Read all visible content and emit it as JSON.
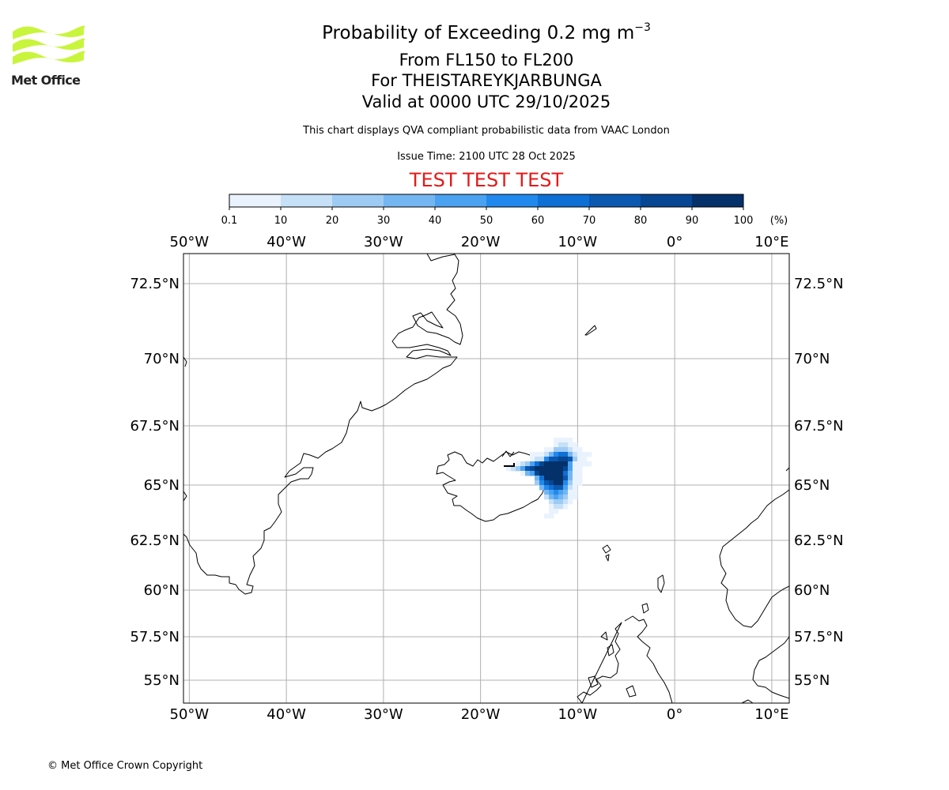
{
  "logo": {
    "text": "Met Office",
    "color": "#c8f53c"
  },
  "header": {
    "title_prefix": "Probability of Exceeding 0.2 mg m",
    "title_exponent": "−3",
    "flight_levels": "From FL150 to FL200",
    "volcano": "For THEISTAREYKJARBUNGA",
    "valid": "Valid at 0000 UTC 29/10/2025",
    "disclaimer": "This chart displays QVA compliant probabilistic data from VAAC London",
    "issue_time": "Issue Time: 2100 UTC 28 Oct 2025",
    "test_banner": "TEST TEST TEST"
  },
  "colorbar": {
    "unit": "(%)",
    "ticks": [
      "0.1",
      "10",
      "20",
      "30",
      "40",
      "50",
      "60",
      "70",
      "80",
      "90",
      "100"
    ],
    "colors": [
      "#eaf3fd",
      "#c6e0f8",
      "#9ecbf3",
      "#74b6f2",
      "#4aa2f1",
      "#2189ee",
      "#0e6fd4",
      "#0a58b0",
      "#074692",
      "#04316a"
    ]
  },
  "map": {
    "lon_labels": [
      "50°W",
      "40°W",
      "30°W",
      "20°W",
      "10°W",
      "0°",
      "10°E"
    ],
    "lons": [
      -50,
      -40,
      -30,
      -20,
      -10,
      0,
      10
    ],
    "lat_labels": [
      "72.5°N",
      "70°N",
      "67.5°N",
      "65°N",
      "62.5°N",
      "60°N",
      "57.5°N",
      "55°N"
    ],
    "lats": [
      72.5,
      70,
      67.5,
      65,
      62.5,
      60,
      57.5,
      55
    ],
    "extent": {
      "lon_min": -50,
      "lon_max": 12,
      "lat_min": 54,
      "lat_max": 73.5
    }
  },
  "footer": {
    "copyright": "© Met Office Crown Copyright"
  }
}
